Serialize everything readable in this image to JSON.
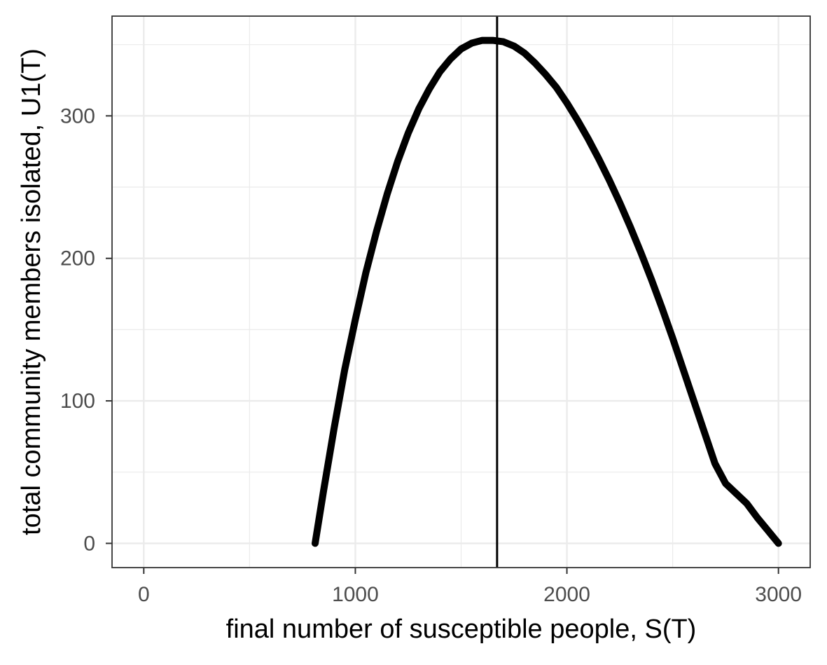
{
  "chart_data": {
    "type": "line",
    "title": "",
    "xlabel": "final number of susceptible people, S(T)",
    "ylabel": "total community members isolated, U1(T)",
    "xlim": [
      -150,
      3150
    ],
    "ylim": [
      -17,
      370
    ],
    "x_ticks": [
      0,
      1000,
      2000,
      3000
    ],
    "x_tick_labels": [
      "0",
      "1000",
      "2000",
      "3000"
    ],
    "y_ticks": [
      0,
      100,
      200,
      300
    ],
    "y_tick_labels": [
      "0",
      "100",
      "200",
      "300"
    ],
    "x_minor_gridlines": [
      500,
      1500,
      2500
    ],
    "y_minor_gridlines": [
      50,
      150,
      250,
      350
    ],
    "grid": true,
    "legend": "none",
    "vertical_line_x": 1670,
    "series": [
      {
        "x": [
          810,
          850,
          900,
          950,
          1000,
          1050,
          1100,
          1150,
          1200,
          1250,
          1300,
          1350,
          1400,
          1450,
          1500,
          1550,
          1600,
          1650,
          1700,
          1750,
          1800,
          1850,
          1900,
          1950,
          2000,
          2050,
          2100,
          2150,
          2200,
          2250,
          2300,
          2350,
          2400,
          2450,
          2500,
          2550,
          2600,
          2650,
          2700,
          2750,
          2800,
          2850,
          2900,
          2950,
          3000
        ],
        "y": [
          0,
          37,
          81,
          122,
          157,
          190,
          219,
          245,
          268,
          288,
          305,
          319,
          331,
          340,
          347,
          351,
          353,
          353,
          352,
          349,
          344,
          337,
          329,
          320,
          309,
          297,
          284,
          270,
          255,
          239,
          222,
          204,
          185,
          165,
          144,
          122,
          100,
          78,
          56,
          42,
          35,
          28,
          18,
          9,
          0
        ]
      }
    ],
    "colors": {
      "line": "#000000",
      "vline": "#000000",
      "grid": "#ebebeb",
      "panel_border": "#333333",
      "tick_text": "#4d4d4d"
    }
  }
}
